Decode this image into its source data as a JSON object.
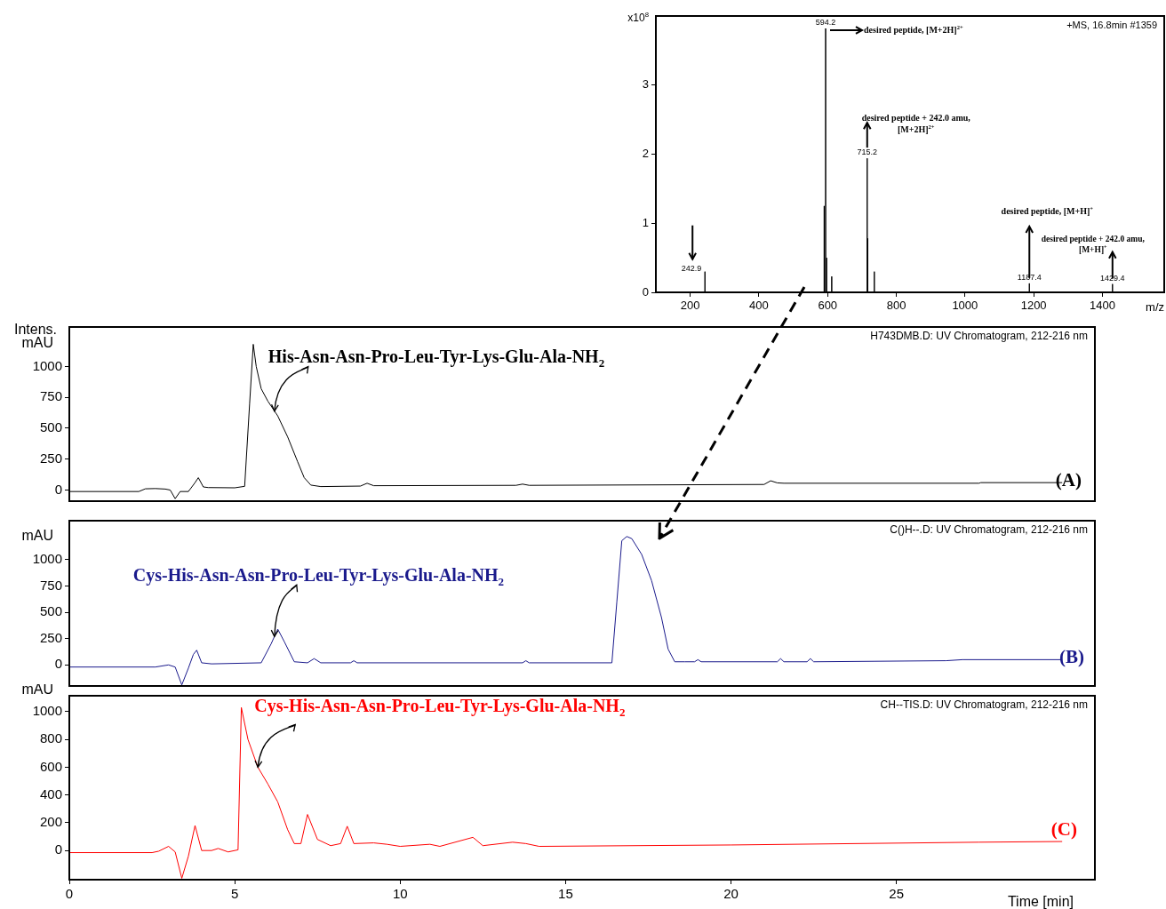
{
  "chart_data": [
    {
      "type": "line",
      "title": "+MS, 16.8min #1359",
      "xlabel": "m/z",
      "ylabel": "x10$^{8}$",
      "x": [
        100,
        242.9,
        242.9,
        242.9,
        590,
        590,
        590,
        594.2,
        594.2,
        594.2,
        597,
        597,
        597,
        612,
        612,
        612,
        715.2,
        715.2,
        715.2,
        717,
        717,
        717,
        736,
        736,
        736,
        1187.4,
        1187.4,
        1187.4,
        1429.4,
        1429.4,
        1429.4,
        1580
      ],
      "series": [
        {
          "color": "#000000",
          "values": [
            0,
            0,
            0.3,
            0,
            0,
            1.25,
            0,
            0,
            3.82,
            0,
            0,
            0.5,
            0,
            0,
            0.23,
            0,
            0,
            1.94,
            0,
            0,
            0.78,
            0,
            0,
            0.3,
            0,
            0,
            0.13,
            0,
            0,
            0.12,
            0,
            0
          ]
        }
      ],
      "xlim": [
        100,
        1580
      ],
      "xticks": [
        200,
        400,
        600,
        800,
        1000,
        1200,
        1400
      ],
      "ylim": [
        0,
        4
      ],
      "yticks": [
        0,
        1,
        2,
        3
      ],
      "annotations": [
        {
          "text": "594.2",
          "x": 594.2,
          "y": 3.82
        },
        {
          "text": "242.9",
          "x": 242.9,
          "y": 0.3
        },
        {
          "text": "715.2",
          "x": 715.2,
          "y": 1.94
        },
        {
          "text": "1187.4",
          "x": 1187.4,
          "y": 0.13
        },
        {
          "text": "1429.4",
          "x": 1429.4,
          "y": 0.12
        },
        "desired peptide, [M+2H]$^{2+}$",
        {
          "text": "desired peptide + 242.0 amu,\n[M+2H]$^{2+}$",
          "x": 715.2,
          "y": 1.94
        },
        {
          "text": "desired peptide, [M+H]$^{+}$",
          "x": 1187.4,
          "y": 0.13
        },
        {
          "text": "desired peptide + 242.0 amu,\n[M+H]$^{+}$",
          "x": 1429.4,
          "y": 0.12
        }
      ]
    },
    {
      "type": "line",
      "title": "H743DMB.D: UV Chromatogram, 212-216 nm",
      "ylabel": "mAU",
      "x": [
        0,
        2.1,
        2.3,
        2.6,
        2.9,
        3.05,
        3.2,
        3.35,
        3.6,
        3.8,
        3.9,
        4.05,
        4.2,
        5.0,
        5.3,
        5.45,
        5.56,
        5.65,
        5.8,
        6.0,
        6.3,
        6.6,
        6.9,
        7.1,
        7.3,
        7.6,
        8.8,
        9.0,
        9.2,
        13.5,
        13.7,
        13.9,
        21.0,
        21.2,
        21.4,
        21.6,
        27.5,
        27.55,
        30.0
      ],
      "series": [
        {
          "color": "#000000",
          "values": [
            -12,
            -12,
            10,
            12,
            8,
            0,
            -70,
            -12,
            -12,
            60,
            100,
            25,
            20,
            18,
            30,
            700,
            1180,
            1000,
            820,
            720,
            600,
            430,
            230,
            100,
            40,
            28,
            32,
            55,
            35,
            38,
            48,
            38,
            45,
            75,
            58,
            55,
            55,
            60,
            60
          ]
        }
      ],
      "xlim": [
        0,
        31
      ],
      "xticks": [
        0,
        5,
        10,
        15,
        20,
        25
      ],
      "ylim": [
        -90,
        1320
      ],
      "yticks": [
        0,
        250,
        500,
        750,
        1000
      ],
      "tick_labels": "y",
      "annotations": [
        "Intens.",
        {
          "text": "His-Asn-Asn-Pro-Leu-Tyr-Lys-Glu-Ala-NH$_{2}$",
          "x": 6.2,
          "y": 640
        },
        "(A)"
      ]
    },
    {
      "type": "line",
      "title": "C()H--.D: UV Chromatogram, 212-216 nm",
      "ylabel": "mAU",
      "x": [
        0,
        2.6,
        3.0,
        3.2,
        3.4,
        3.6,
        3.75,
        3.85,
        4.0,
        4.3,
        5.8,
        6.1,
        6.3,
        6.5,
        6.8,
        7.2,
        7.4,
        7.6,
        8.5,
        8.6,
        8.7,
        13.7,
        13.8,
        13.9,
        16.4,
        16.55,
        16.7,
        16.85,
        17.0,
        17.3,
        17.6,
        17.9,
        18.1,
        18.3,
        18.6,
        18.9,
        19.0,
        19.1,
        21.4,
        21.5,
        21.6,
        22.3,
        22.4,
        22.5,
        26.5,
        27.0,
        30.0
      ],
      "series": [
        {
          "color": "#1a1a8c",
          "values": [
            -20,
            -20,
            0,
            -20,
            -190,
            -30,
            100,
            140,
            20,
            10,
            20,
            200,
            340,
            220,
            30,
            20,
            60,
            20,
            20,
            40,
            20,
            20,
            40,
            20,
            20,
            600,
            1180,
            1220,
            1200,
            1050,
            800,
            450,
            150,
            30,
            30,
            30,
            50,
            30,
            30,
            60,
            30,
            30,
            60,
            30,
            40,
            50,
            50
          ]
        }
      ],
      "xlim": [
        0,
        31
      ],
      "xticks": [
        0,
        5,
        10,
        15,
        20,
        25
      ],
      "ylim": [
        -200,
        1370
      ],
      "yticks": [
        0,
        250,
        500,
        750,
        1000
      ],
      "tick_labels": "y",
      "annotations": [
        {
          "text": "Cys-His-Asn-Asn-Pro-Leu-Tyr-Lys-Glu-Ala-NH$_{2}$",
          "x": 6.2,
          "y": 270
        },
        "(B)"
      ]
    },
    {
      "type": "line",
      "title": "CH--TIS.D: UV Chromatogram, 212-216 nm",
      "xlabel": "Time [min]",
      "ylabel": "mAU",
      "x": [
        0,
        2.5,
        2.7,
        3.0,
        3.2,
        3.4,
        3.6,
        3.8,
        4.0,
        4.3,
        4.5,
        4.8,
        5.1,
        5.2,
        5.4,
        5.7,
        6.0,
        6.3,
        6.6,
        6.8,
        7.0,
        7.2,
        7.5,
        7.9,
        8.2,
        8.4,
        8.6,
        9.2,
        9.6,
        10.0,
        10.9,
        11.2,
        12.2,
        12.5,
        13.4,
        13.8,
        14.2,
        20.0,
        27.5,
        30.0
      ],
      "series": [
        {
          "color": "#ff0000",
          "values": [
            -15,
            -15,
            -5,
            30,
            -10,
            -200,
            -40,
            180,
            0,
            0,
            15,
            -10,
            5,
            1030,
            800,
            600,
            480,
            350,
            150,
            50,
            50,
            260,
            80,
            35,
            50,
            175,
            50,
            55,
            45,
            30,
            45,
            30,
            95,
            35,
            60,
            50,
            30,
            40,
            60,
            65
          ]
        }
      ],
      "xlim": [
        0,
        31
      ],
      "xticks": [
        0,
        5,
        10,
        15,
        20,
        25
      ],
      "ylim": [
        -210,
        1115
      ],
      "yticks": [
        0,
        200,
        400,
        600,
        800,
        1000
      ],
      "annotations": [
        {
          "text": "Cys-His-Asn-Asn-Pro-Leu-Tyr-Lys-Glu-Ala-NH$_{2}$",
          "x": 5.7,
          "y": 600
        },
        "(C)"
      ]
    }
  ]
}
